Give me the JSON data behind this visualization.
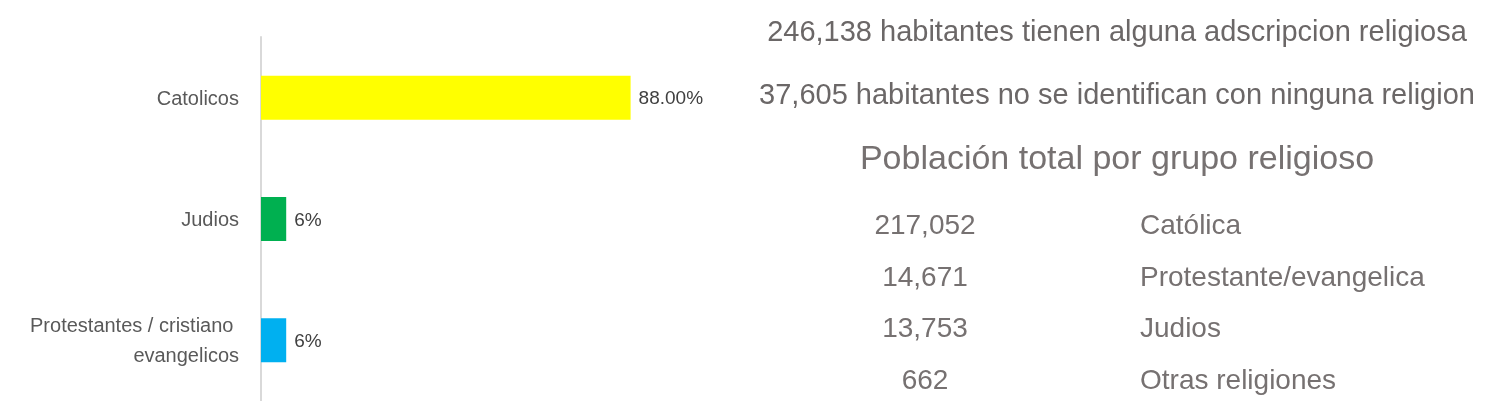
{
  "chart_data": [
    {
      "type": "bar",
      "orientation": "horizontal",
      "categories": [
        "Catolicos",
        "Judios",
        "Protestantes / cristiano evangelicos"
      ],
      "values": [
        88,
        6,
        6
      ],
      "value_labels": [
        "88.00%",
        "6%",
        "6%"
      ],
      "colors": [
        "#ffff00",
        "#00b050",
        "#00b0f0"
      ],
      "tick_labels": "y"
    },
    {
      "type": "other",
      "title": "Población total por grupo religioso",
      "annotations": [
        "246,138 habitantes tienen alguna adscripcion religiosa",
        "37,605 habitantes no se identifican con ninguna religion",
        "217,052",
        "Católica",
        "14,671",
        "Protestante/evangelica",
        "13,753",
        "Judios",
        "662",
        "Otras religiones"
      ]
    }
  ]
}
